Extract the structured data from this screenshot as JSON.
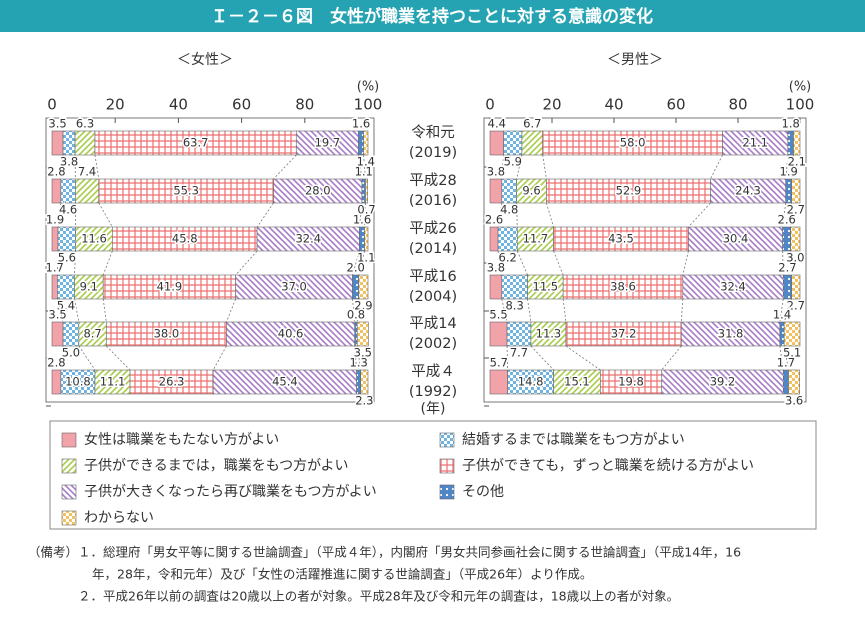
{
  "header": {
    "title": "Ｉ－２－６図　女性が職業を持つことに対する意識の変化"
  },
  "chart_data": [
    {
      "type": "bar",
      "orientation": "horizontal",
      "stacked": true,
      "title": "＜女性＞",
      "x_label": "(%)",
      "category_unit": "(年)",
      "categories": [
        [
          "令和元",
          "(2019)"
        ],
        [
          "平成28",
          "(2016)"
        ],
        [
          "平成26",
          "(2014)"
        ],
        [
          "平成16",
          "(2004)"
        ],
        [
          "平成14",
          "(2002)"
        ],
        [
          "平成４",
          "(1992)"
        ]
      ],
      "xlim": [
        0,
        100
      ],
      "xticks": [
        0,
        20,
        40,
        60,
        80,
        100
      ],
      "series": [
        {
          "name": "女性は職業をもたない方がよい",
          "color": "#f2a3aa",
          "values": [
            3.5,
            2.8,
            1.9,
            1.7,
            3.5,
            2.8
          ],
          "value_labels": [
            "3.5",
            "2.8",
            "1.9",
            "1.7",
            "3.5",
            "2.8"
          ]
        },
        {
          "name": "結婚するまでは職業をもつ方がよい",
          "color": "#6fb3e0",
          "values": [
            3.8,
            4.6,
            5.6,
            5.4,
            5.0,
            10.8
          ],
          "value_labels": [
            "3.8",
            "4.6",
            "5.6",
            "5.4",
            "5.0",
            "10.8"
          ]
        },
        {
          "name": "子供ができるまでは，職業をもつ方がよい",
          "color": "#a9cc4a",
          "values": [
            6.3,
            7.4,
            11.6,
            9.1,
            8.7,
            11.1
          ],
          "value_labels": [
            "6.3",
            "7.4",
            "11.6",
            "9.1",
            "8.7",
            "11.1"
          ]
        },
        {
          "name": "子供ができても，ずっと職業を続ける方がよい",
          "color": "#ee6f6f",
          "values": [
            63.7,
            55.3,
            45.8,
            41.9,
            38.0,
            26.3
          ],
          "value_labels": [
            "63.7",
            "55.3",
            "45.8",
            "41.9",
            "38.0",
            "26.3"
          ]
        },
        {
          "name": "子供が大きくなったら再び職業をもつ方がよい",
          "color": "#a77cc8",
          "values": [
            19.7,
            28.0,
            32.4,
            37.0,
            40.6,
            45.4
          ],
          "value_labels": [
            "19.7",
            "28.0",
            "32.4",
            "37.0",
            "40.6",
            "45.4"
          ]
        },
        {
          "name": "その他",
          "color": "#4f86c6",
          "values": [
            1.6,
            1.1,
            1.6,
            2.0,
            0.8,
            1.3
          ],
          "value_labels": [
            "1.6",
            "1.1",
            "1.6",
            "2.0",
            "0.8",
            "1.3"
          ]
        },
        {
          "name": "わからない",
          "color": "#f2c160",
          "values": [
            1.4,
            0.7,
            1.1,
            2.9,
            3.5,
            2.3
          ],
          "value_labels": [
            "1.4",
            "0.7",
            "1.1",
            "2.9",
            "3.5",
            "2.3"
          ]
        }
      ]
    },
    {
      "type": "bar",
      "orientation": "horizontal",
      "stacked": true,
      "title": "＜男性＞",
      "x_label": "(%)",
      "xlim": [
        0,
        100
      ],
      "xticks": [
        0,
        20,
        40,
        60,
        80,
        100
      ],
      "series": [
        {
          "color": "#f2a3aa",
          "values": [
            4.4,
            3.8,
            2.6,
            3.8,
            5.5,
            5.7
          ],
          "value_labels": [
            "4.4",
            "3.8",
            "2.6",
            "3.8",
            "5.5",
            "5.7"
          ]
        },
        {
          "color": "#6fb3e0",
          "values": [
            5.9,
            4.8,
            6.2,
            8.3,
            7.7,
            14.8
          ],
          "value_labels": [
            "5.9",
            "4.8",
            "6.2",
            "8.3",
            "7.7",
            "14.8"
          ]
        },
        {
          "color": "#a9cc4a",
          "values": [
            6.7,
            9.6,
            11.7,
            11.5,
            11.3,
            15.1
          ],
          "value_labels": [
            "6.7",
            "9.6",
            "11.7",
            "11.5",
            "11.3",
            "15.1"
          ]
        },
        {
          "color": "#ee6f6f",
          "values": [
            58.0,
            52.9,
            43.5,
            38.6,
            37.2,
            19.8
          ],
          "value_labels": [
            "58.0",
            "52.9",
            "43.5",
            "38.6",
            "37.2",
            "19.8"
          ]
        },
        {
          "color": "#a77cc8",
          "values": [
            21.1,
            24.3,
            30.4,
            32.4,
            31.8,
            39.2
          ],
          "value_labels": [
            "21.1",
            "24.3",
            "30.4",
            "32.4",
            "31.8",
            "39.2"
          ]
        },
        {
          "color": "#4f86c6",
          "values": [
            1.8,
            1.9,
            2.6,
            2.7,
            1.4,
            1.7
          ],
          "value_labels": [
            "1.8",
            "1.9",
            "2.6",
            "2.7",
            "1.4",
            "1.7"
          ]
        },
        {
          "color": "#f2c160",
          "values": [
            2.1,
            2.7,
            3.0,
            2.7,
            5.1,
            3.6
          ],
          "value_labels": [
            "2.1",
            "2.7",
            "3.0",
            "2.7",
            "5.1",
            "3.6"
          ]
        }
      ]
    }
  ],
  "notes": {
    "label": "（備考）",
    "lines": [
      "１．総理府「男女平等に関する世論調査」（平成４年），内閣府「男女共同参画社会に関する世論調査」（平成14年，16",
      "年，28年，令和元年）及び「女性の活躍推進に関する世論調査」（平成26年）より作成。",
      "２．平成26年以前の調査は20歳以上の者が対象。平成28年及び令和元年の調査は，18歳以上の者が対象。"
    ]
  }
}
